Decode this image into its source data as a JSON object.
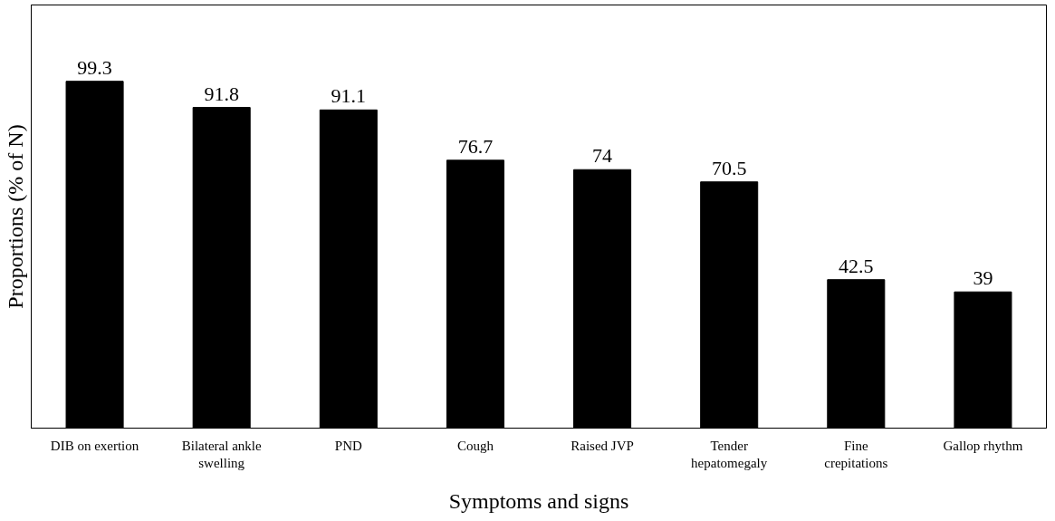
{
  "chart_data": {
    "type": "bar",
    "xlabel": "Symptoms and signs",
    "ylabel": "Proportions (% of N)",
    "categories": [
      "DIB on exertion",
      "Bilateral ankle swelling",
      "PND",
      "Cough",
      "Raised JVP",
      "Tender hepatomegaly",
      "Fine crepitations",
      "Gallop rhythm"
    ],
    "values": [
      99.3,
      91.8,
      91.1,
      76.7,
      74,
      70.5,
      42.5,
      39
    ],
    "color": "#000000",
    "data_labels": true,
    "tick_labels": "x",
    "grid": false
  }
}
